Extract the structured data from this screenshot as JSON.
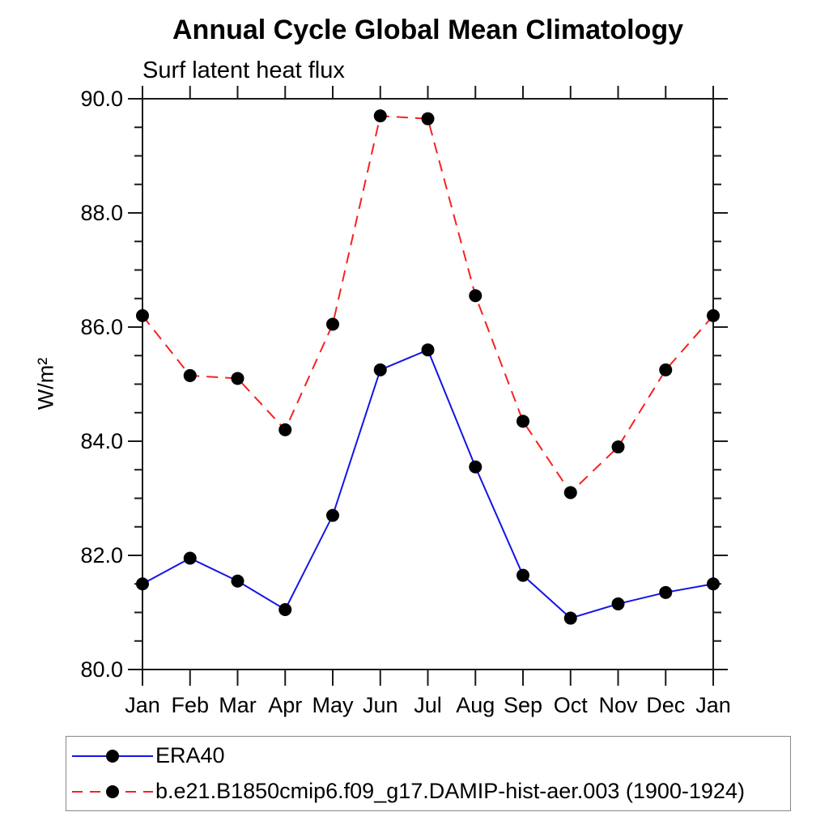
{
  "chart_data": {
    "type": "line",
    "title": "Annual Cycle Global Mean Climatology",
    "subtitle": "Surf latent heat flux",
    "ylabel": "W/m²",
    "ylim": [
      80.0,
      90.0
    ],
    "y_major_tick_step": 2.0,
    "y_minor_tick_step": 0.5,
    "y_tick_labels": [
      "90.0",
      "88.0",
      "86.0",
      "84.0",
      "82.0",
      "80.0"
    ],
    "grid": "off",
    "legend_position": "bottom-left-box",
    "categories": [
      "Jan",
      "Feb",
      "Mar",
      "Apr",
      "May",
      "Jun",
      "Jul",
      "Aug",
      "Sep",
      "Oct",
      "Nov",
      "Dec",
      "Jan"
    ],
    "series": [
      {
        "name": "ERA40",
        "color": "#1414e6",
        "line_style": "solid",
        "marker": "filled-circle",
        "marker_color": "#000000",
        "values": [
          81.5,
          81.95,
          81.55,
          81.05,
          82.7,
          85.25,
          85.6,
          83.55,
          81.65,
          80.9,
          81.15,
          81.35,
          81.5
        ]
      },
      {
        "name": "b.e21.B1850cmip6.f09_g17.DAMIP-hist-aer.003 (1900-1924)",
        "color": "#f52222",
        "line_style": "dashed",
        "marker": "filled-circle",
        "marker_color": "#000000",
        "values": [
          86.2,
          85.15,
          85.1,
          84.2,
          86.05,
          89.7,
          89.65,
          86.55,
          84.35,
          83.1,
          83.9,
          85.25,
          86.2
        ]
      }
    ],
    "axis_color": "#1a1a1a"
  }
}
